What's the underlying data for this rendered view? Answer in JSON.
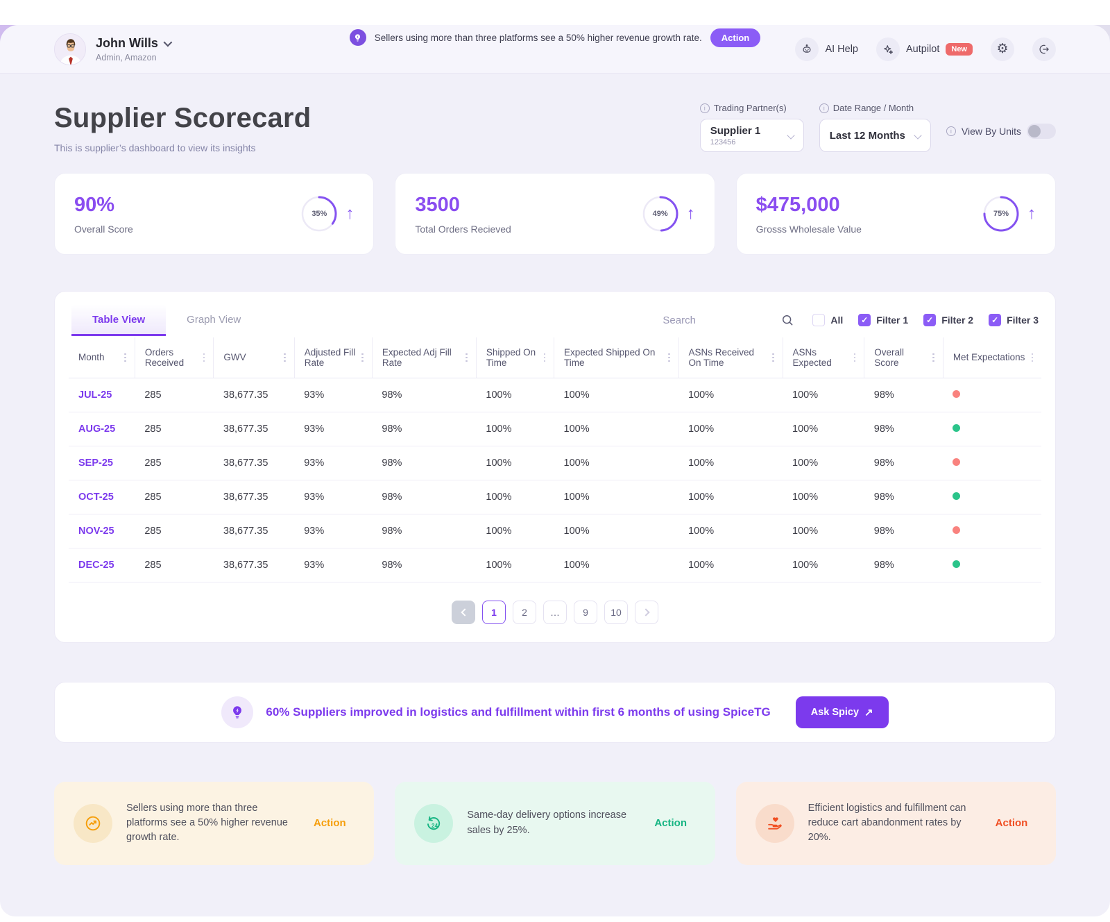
{
  "colors": {
    "accent": "#7C3AED",
    "accent_light": "#8B5CF6",
    "status": {
      "red": "#F9827E",
      "green": "#2BC48A"
    }
  },
  "notice": {
    "text": "Sellers using more than three platforms see a 50% higher revenue growth rate.",
    "action_label": "Action"
  },
  "header": {
    "user_name": "John Wills",
    "user_role": "Admin, Amazon",
    "ai_help_label": "AI Help",
    "autopilot_label": "Autpilot",
    "new_badge": "New"
  },
  "page": {
    "title": "Supplier Scorecard",
    "subtitle": "This is supplier’s dashboard to view its insights"
  },
  "controls": {
    "trading_partner_label": "Trading Partner(s)",
    "trading_partner_value": "Supplier 1",
    "trading_partner_sub": "123456",
    "date_range_label": "Date Range / Month",
    "date_range_value": "Last 12 Months",
    "view_by_units_label": "View By Units",
    "view_by_units_on": false
  },
  "stats": [
    {
      "value": "90%",
      "label": "Overall Score",
      "ring_pct": 35,
      "ring_label": "35%"
    },
    {
      "value": "3500",
      "label": "Total Orders Recieved",
      "ring_pct": 49,
      "ring_label": "49%"
    },
    {
      "value": "$475,000",
      "label": "Grosss Wholesale Value",
      "ring_pct": 75,
      "ring_label": "75%"
    }
  ],
  "table": {
    "tabs": [
      "Table View",
      "Graph View"
    ],
    "active_tab": "Table View",
    "search_placeholder": "Search",
    "filters": [
      {
        "label": "All",
        "checked": false
      },
      {
        "label": "Filter 1",
        "checked": true
      },
      {
        "label": "Filter 2",
        "checked": true
      },
      {
        "label": "Filter 3",
        "checked": true
      }
    ],
    "columns": [
      "Month",
      "Orders Received",
      "GWV",
      "Adjusted Fill Rate",
      "Expected Adj Fill Rate",
      "Shipped On Time",
      "Expected Shipped On Time",
      "ASNs Received On Time",
      "ASNs Expected",
      "Overall Score",
      "Met Expectations"
    ],
    "column_widths_pct": [
      6.8,
      8.1,
      8.3,
      8.0,
      10.7,
      8.0,
      12.8,
      10.7,
      8.4,
      8.1,
      10.1
    ],
    "rows": [
      {
        "month": "JUL-25",
        "orders_received": "285",
        "gwv": "38,677.35",
        "adjusted_fill_rate": "93%",
        "expected_adj_fill_rate": "98%",
        "shipped_on_time": "100%",
        "expected_shipped_on_time": "100%",
        "asns_received_on_time": "100%",
        "asns_expected": "100%",
        "overall_score": "98%",
        "met_expectations": "red"
      },
      {
        "month": "AUG-25",
        "orders_received": "285",
        "gwv": "38,677.35",
        "adjusted_fill_rate": "93%",
        "expected_adj_fill_rate": "98%",
        "shipped_on_time": "100%",
        "expected_shipped_on_time": "100%",
        "asns_received_on_time": "100%",
        "asns_expected": "100%",
        "overall_score": "98%",
        "met_expectations": "green"
      },
      {
        "month": "SEP-25",
        "orders_received": "285",
        "gwv": "38,677.35",
        "adjusted_fill_rate": "93%",
        "expected_adj_fill_rate": "98%",
        "shipped_on_time": "100%",
        "expected_shipped_on_time": "100%",
        "asns_received_on_time": "100%",
        "asns_expected": "100%",
        "overall_score": "98%",
        "met_expectations": "red"
      },
      {
        "month": "OCT-25",
        "orders_received": "285",
        "gwv": "38,677.35",
        "adjusted_fill_rate": "93%",
        "expected_adj_fill_rate": "98%",
        "shipped_on_time": "100%",
        "expected_shipped_on_time": "100%",
        "asns_received_on_time": "100%",
        "asns_expected": "100%",
        "overall_score": "98%",
        "met_expectations": "green"
      },
      {
        "month": "NOV-25",
        "orders_received": "285",
        "gwv": "38,677.35",
        "adjusted_fill_rate": "93%",
        "expected_adj_fill_rate": "98%",
        "shipped_on_time": "100%",
        "expected_shipped_on_time": "100%",
        "asns_received_on_time": "100%",
        "asns_expected": "100%",
        "overall_score": "98%",
        "met_expectations": "red"
      },
      {
        "month": "DEC-25",
        "orders_received": "285",
        "gwv": "38,677.35",
        "adjusted_fill_rate": "93%",
        "expected_adj_fill_rate": "98%",
        "shipped_on_time": "100%",
        "expected_shipped_on_time": "100%",
        "asns_received_on_time": "100%",
        "asns_expected": "100%",
        "overall_score": "98%",
        "met_expectations": "green"
      }
    ],
    "pagination": {
      "pages": [
        "1",
        "2",
        "…",
        "9",
        "10"
      ],
      "active": "1"
    }
  },
  "insight": {
    "text": "60% Suppliers improved in logistics and fulfillment within first 6 months of using SpiceTG",
    "button_label": "Ask Spicy",
    "button_arrow": "↗"
  },
  "tips": [
    {
      "icon": "trend-up-circle-icon",
      "text": "Sellers using more than three platforms see a 50% higher revenue growth rate.",
      "action_label": "Action",
      "accent": "#F59E0B",
      "bg": "#FCF3E3",
      "icon_bg": "#F8E7C6"
    },
    {
      "icon": "same-day-24-icon",
      "text": "Same-day delivery options increase sales by 25%.",
      "action_label": "Action",
      "accent": "#17B583",
      "bg": "#E8F8F0",
      "icon_bg": "#C9F2E0"
    },
    {
      "icon": "hand-heart-icon",
      "text": "Efficient logistics and fulfillment can reduce cart abandonment rates by 20%.",
      "action_label": "Action",
      "accent": "#F04F23",
      "bg": "#FCEDE4",
      "icon_bg": "#F9DCCB"
    }
  ]
}
